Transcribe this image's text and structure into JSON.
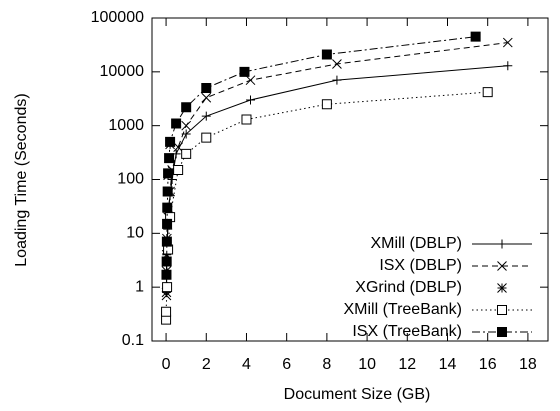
{
  "chart_data": {
    "type": "line",
    "xlabel": "Document Size (GB)",
    "ylabel": "Loading Time (Seconds)",
    "log_y": true,
    "legend_position": "lower right",
    "xlim": [
      -0.7,
      19
    ],
    "xticks": [
      0,
      2,
      4,
      6,
      8,
      10,
      12,
      14,
      16,
      18
    ],
    "ylim": [
      0.1,
      100000
    ],
    "yticks": [
      0.1,
      1,
      10,
      100,
      1000,
      10000,
      100000
    ],
    "series": [
      {
        "name": "XMill (DBLP)",
        "color": "#000000",
        "dash": "solid",
        "marker": "plus",
        "x": [
          0.02,
          0.04,
          0.06,
          0.08,
          0.1,
          0.2,
          0.3,
          0.5,
          1,
          2,
          4.2,
          8.5,
          17
        ],
        "values": [
          1.5,
          3,
          6,
          12,
          25,
          50,
          100,
          300,
          700,
          1500,
          3000,
          7000,
          13000
        ]
      },
      {
        "name": "ISX (DBLP)",
        "color": "#000000",
        "dash": "dashed",
        "marker": "cross",
        "x": [
          0.02,
          0.05,
          0.1,
          0.2,
          0.3,
          0.6,
          1,
          2,
          4.2,
          8.5,
          17
        ],
        "values": [
          0.7,
          5,
          20,
          60,
          150,
          400,
          1000,
          3300,
          7000,
          14000,
          35000
        ]
      },
      {
        "name": "XGrind (DBLP)",
        "color": "#000000",
        "dash": "none",
        "marker": "star",
        "x": [
          0.02,
          0.02,
          0.03,
          0.04,
          0.05,
          0.06,
          0.08,
          0.1,
          0.15,
          0.2
        ],
        "values": [
          0.8,
          2,
          4,
          8,
          15,
          30,
          60,
          120,
          250,
          450
        ]
      },
      {
        "name": "XMill (TreeBank)",
        "color": "#000000",
        "dash": "dotted",
        "marker": "square",
        "x": [
          0,
          0,
          0.05,
          0.1,
          0.2,
          0.6,
          1,
          2,
          4,
          8,
          16
        ],
        "values": [
          0.25,
          0.35,
          1,
          5,
          20,
          150,
          300,
          600,
          1300,
          2500,
          4200
        ]
      },
      {
        "name": "ISX (TreeBank)",
        "color": "#000000",
        "dash": "dashdot",
        "marker": "filled-square",
        "x": [
          0.02,
          0.03,
          0.04,
          0.05,
          0.06,
          0.08,
          0.1,
          0.15,
          0.2,
          0.5,
          1,
          2,
          3.9,
          8,
          15.4
        ],
        "values": [
          1.7,
          3,
          7,
          15,
          30,
          60,
          130,
          250,
          500,
          1100,
          2200,
          5000,
          10000,
          21000,
          45000
        ]
      }
    ]
  }
}
